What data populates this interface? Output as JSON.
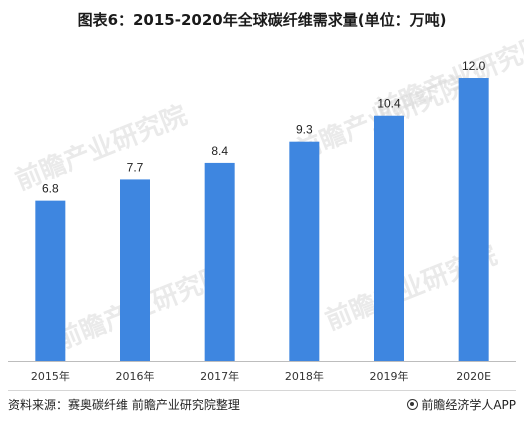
{
  "chart_data": {
    "type": "bar",
    "title": "图表6：2015-2020年全球碳纤维需求量(单位：万吨)",
    "categories": [
      "2015年",
      "2016年",
      "2017年",
      "2018年",
      "2019年",
      "2020E"
    ],
    "values": [
      6.8,
      7.7,
      8.4,
      9.3,
      10.4,
      12.0
    ],
    "value_labels": [
      "6.8",
      "7.7",
      "8.4",
      "9.3",
      "10.4",
      "12.0"
    ],
    "ylim": [
      0,
      13.4
    ],
    "bar_color": "#3e86e0",
    "grid": false,
    "legend": "none"
  },
  "watermark": "前瞻产业研究院",
  "footer": {
    "source": "资料来源：赛奥碳纤维 前瞻产业研究院整理",
    "brand": "前瞻经济学人APP",
    "brand_icon": "brand-logo-icon"
  }
}
